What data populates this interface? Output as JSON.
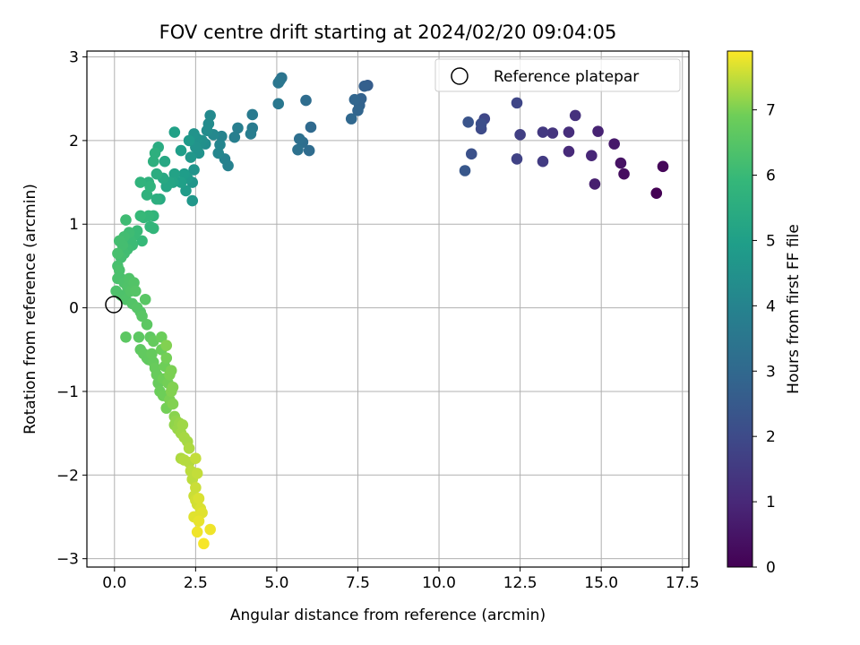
{
  "chart_data": {
    "type": "scatter",
    "title": "FOV centre drift starting at 2024/02/20 09:04:05",
    "xlabel": "Angular distance from reference (arcmin)",
    "ylabel": "Rotation from reference (arcmin)",
    "xlim": [
      -0.85,
      17.7
    ],
    "ylim": [
      -3.1,
      3.07
    ],
    "xticks": [
      0.0,
      2.5,
      5.0,
      7.5,
      10.0,
      12.5,
      15.0,
      17.5
    ],
    "xtick_labels": [
      "0.0",
      "2.5",
      "5.0",
      "7.5",
      "10.0",
      "12.5",
      "15.0",
      "17.5"
    ],
    "yticks": [
      -3,
      -2,
      -1,
      0,
      1,
      2,
      3
    ],
    "ytick_labels": [
      "−3",
      "−2",
      "−1",
      "0",
      "1",
      "2",
      "3"
    ],
    "grid": true,
    "legend": {
      "position": "top-right",
      "entries": [
        "Reference platepar"
      ]
    },
    "reference_point": {
      "x": 0,
      "y": 0,
      "label": "Reference platepar"
    },
    "colorbar": {
      "label": "Hours from first FF file",
      "colormap": "viridis",
      "range": [
        0,
        7.9
      ],
      "ticks": [
        0,
        1,
        2,
        3,
        4,
        5,
        6,
        7
      ],
      "tick_labels": [
        "0",
        "1",
        "2",
        "3",
        "4",
        "5",
        "6",
        "7"
      ]
    },
    "points": [
      [
        16.7,
        1.37,
        0.0
      ],
      [
        16.9,
        1.69,
        0.15
      ],
      [
        15.7,
        1.6,
        0.3
      ],
      [
        15.6,
        1.73,
        0.45
      ],
      [
        15.4,
        1.96,
        0.6
      ],
      [
        14.8,
        1.48,
        0.75
      ],
      [
        14.9,
        2.11,
        0.85
      ],
      [
        14.7,
        1.82,
        0.95
      ],
      [
        14.0,
        1.87,
        1.05
      ],
      [
        14.0,
        2.1,
        1.15
      ],
      [
        14.2,
        2.3,
        1.25
      ],
      [
        13.5,
        2.09,
        1.35
      ],
      [
        13.2,
        2.1,
        1.45
      ],
      [
        13.2,
        1.75,
        1.55
      ],
      [
        12.5,
        2.07,
        1.65
      ],
      [
        12.4,
        1.78,
        1.75
      ],
      [
        12.4,
        2.45,
        1.85
      ],
      [
        11.4,
        2.26,
        1.9
      ],
      [
        11.3,
        2.14,
        2.0
      ],
      [
        11.3,
        2.2,
        2.1
      ],
      [
        11.0,
        1.84,
        2.2
      ],
      [
        10.9,
        2.22,
        2.3
      ],
      [
        10.8,
        1.64,
        2.4
      ],
      [
        7.8,
        2.66,
        2.6
      ],
      [
        7.7,
        2.65,
        2.7
      ],
      [
        7.6,
        2.5,
        2.75
      ],
      [
        7.55,
        2.42,
        2.8
      ],
      [
        7.5,
        2.36,
        2.85
      ],
      [
        7.4,
        2.49,
        2.9
      ],
      [
        7.3,
        2.26,
        2.95
      ],
      [
        6.05,
        2.16,
        3.05
      ],
      [
        6.0,
        1.88,
        3.1
      ],
      [
        5.9,
        2.48,
        3.15
      ],
      [
        5.8,
        1.98,
        3.2
      ],
      [
        5.7,
        2.02,
        3.25
      ],
      [
        5.65,
        1.89,
        3.3
      ],
      [
        5.15,
        2.75,
        3.4
      ],
      [
        5.1,
        2.72,
        3.45
      ],
      [
        5.05,
        2.69,
        3.5
      ],
      [
        5.05,
        2.44,
        3.55
      ],
      [
        4.25,
        2.31,
        3.65
      ],
      [
        4.25,
        2.15,
        3.7
      ],
      [
        4.2,
        2.08,
        3.75
      ],
      [
        3.8,
        2.15,
        3.8
      ],
      [
        3.7,
        2.04,
        3.85
      ],
      [
        3.5,
        1.7,
        3.9
      ],
      [
        3.4,
        1.78,
        3.95
      ],
      [
        3.3,
        2.05,
        4.0
      ],
      [
        3.25,
        1.95,
        4.05
      ],
      [
        3.2,
        1.85,
        4.1
      ],
      [
        3.05,
        2.07,
        4.15
      ],
      [
        2.95,
        2.3,
        4.2
      ],
      [
        2.9,
        2.2,
        4.25
      ],
      [
        2.85,
        2.12,
        4.3
      ],
      [
        2.8,
        1.96,
        4.35
      ],
      [
        2.7,
        2.0,
        4.4
      ],
      [
        2.65,
        1.97,
        4.45
      ],
      [
        2.6,
        1.85,
        4.5
      ],
      [
        2.55,
        2.02,
        4.5
      ],
      [
        2.5,
        1.92,
        4.55
      ],
      [
        2.45,
        2.08,
        4.55
      ],
      [
        2.45,
        1.65,
        4.6
      ],
      [
        2.4,
        1.5,
        4.65
      ],
      [
        2.4,
        1.28,
        4.7
      ],
      [
        2.35,
        1.8,
        4.7
      ],
      [
        2.3,
        2.0,
        4.75
      ],
      [
        2.25,
        1.55,
        4.8
      ],
      [
        2.2,
        1.4,
        4.85
      ],
      [
        2.15,
        1.6,
        4.9
      ],
      [
        2.05,
        1.88,
        4.95
      ],
      [
        2.05,
        1.5,
        5.0
      ],
      [
        1.85,
        2.1,
        5.05
      ],
      [
        1.85,
        1.6,
        5.1
      ],
      [
        1.8,
        1.5,
        5.15
      ],
      [
        1.7,
        1.5,
        5.2
      ],
      [
        1.6,
        1.45,
        5.25
      ],
      [
        1.55,
        1.75,
        5.3
      ],
      [
        1.5,
        1.55,
        5.35
      ],
      [
        1.4,
        1.3,
        5.4
      ],
      [
        1.35,
        1.92,
        5.45
      ],
      [
        1.3,
        1.6,
        5.5
      ],
      [
        1.3,
        1.3,
        5.55
      ],
      [
        1.25,
        1.85,
        5.6
      ],
      [
        1.2,
        1.75,
        5.6
      ],
      [
        1.05,
        1.5,
        5.65
      ],
      [
        1.0,
        1.35,
        5.7
      ],
      [
        0.8,
        1.5,
        5.75
      ],
      [
        1.1,
        1.45,
        5.75
      ],
      [
        1.2,
        1.1,
        5.8
      ],
      [
        1.2,
        0.95,
        5.85
      ],
      [
        1.1,
        0.97,
        5.85
      ],
      [
        1.05,
        1.1,
        5.9
      ],
      [
        0.9,
        1.08,
        5.9
      ],
      [
        0.85,
        0.8,
        5.95
      ],
      [
        0.8,
        1.1,
        5.95
      ],
      [
        0.7,
        0.92,
        6.0
      ],
      [
        0.6,
        0.87,
        6.0
      ],
      [
        0.55,
        0.75,
        6.05
      ],
      [
        0.5,
        0.8,
        6.05
      ],
      [
        0.45,
        0.9,
        6.1
      ],
      [
        0.4,
        0.7,
        6.1
      ],
      [
        0.35,
        1.05,
        6.1
      ],
      [
        0.3,
        0.85,
        6.15
      ],
      [
        0.3,
        0.65,
        6.15
      ],
      [
        0.25,
        0.75,
        6.2
      ],
      [
        0.2,
        0.6,
        6.2
      ],
      [
        0.15,
        0.8,
        6.2
      ],
      [
        0.1,
        0.65,
        6.25
      ],
      [
        0.1,
        0.5,
        6.25
      ],
      [
        0.15,
        0.45,
        6.3
      ],
      [
        0.2,
        0.35,
        6.3
      ],
      [
        0.1,
        0.35,
        6.3
      ],
      [
        0.05,
        0.2,
        6.35
      ],
      [
        0.2,
        0.15,
        6.35
      ],
      [
        0.3,
        0.3,
        6.35
      ],
      [
        0.4,
        0.25,
        6.4
      ],
      [
        0.45,
        0.35,
        6.4
      ],
      [
        0.35,
        0.1,
        6.4
      ],
      [
        0.5,
        0.2,
        6.45
      ],
      [
        0.55,
        0.05,
        6.45
      ],
      [
        0.6,
        0.3,
        6.45
      ],
      [
        0.65,
        0.2,
        6.5
      ],
      [
        0.7,
        0.0,
        6.5
      ],
      [
        0.8,
        -0.05,
        6.5
      ],
      [
        0.85,
        -0.1,
        6.55
      ],
      [
        0.95,
        0.1,
        6.55
      ],
      [
        1.0,
        -0.2,
        6.6
      ],
      [
        0.35,
        -0.35,
        6.6
      ],
      [
        0.75,
        -0.35,
        6.6
      ],
      [
        1.1,
        -0.35,
        6.65
      ],
      [
        0.8,
        -0.5,
        6.65
      ],
      [
        0.9,
        -0.55,
        6.7
      ],
      [
        1.0,
        -0.6,
        6.7
      ],
      [
        1.05,
        -0.62,
        6.7
      ],
      [
        1.15,
        -0.55,
        6.75
      ],
      [
        1.2,
        -0.65,
        6.75
      ],
      [
        1.2,
        -0.4,
        6.75
      ],
      [
        1.25,
        -0.72,
        6.8
      ],
      [
        1.3,
        -0.8,
        6.8
      ],
      [
        1.35,
        -0.9,
        6.8
      ],
      [
        1.4,
        -1.0,
        6.85
      ],
      [
        1.45,
        -0.5,
        6.85
      ],
      [
        1.45,
        -0.35,
        6.85
      ],
      [
        1.5,
        -0.85,
        6.9
      ],
      [
        1.5,
        -1.05,
        6.9
      ],
      [
        1.55,
        -0.7,
        6.9
      ],
      [
        1.6,
        -0.6,
        6.95
      ],
      [
        1.6,
        -1.2,
        6.95
      ],
      [
        1.65,
        -0.9,
        6.95
      ],
      [
        1.7,
        -0.8,
        7.0
      ],
      [
        1.7,
        -1.1,
        7.0
      ],
      [
        1.75,
        -0.75,
        7.0
      ],
      [
        1.75,
        -1.0,
        7.05
      ],
      [
        1.8,
        -0.95,
        7.05
      ],
      [
        1.8,
        -1.15,
        7.05
      ],
      [
        1.6,
        -0.45,
        7.05
      ],
      [
        1.85,
        -1.3,
        7.1
      ],
      [
        1.85,
        -1.4,
        7.15
      ],
      [
        1.9,
        -1.35,
        7.15
      ],
      [
        1.95,
        -1.45,
        7.2
      ],
      [
        2.0,
        -1.38,
        7.2
      ],
      [
        2.05,
        -1.5,
        7.25
      ],
      [
        2.1,
        -1.4,
        7.25
      ],
      [
        2.15,
        -1.55,
        7.3
      ],
      [
        2.25,
        -1.6,
        7.3
      ],
      [
        2.3,
        -1.68,
        7.35
      ],
      [
        2.05,
        -1.8,
        7.35
      ],
      [
        2.15,
        -1.82,
        7.4
      ],
      [
        2.3,
        -1.85,
        7.4
      ],
      [
        2.35,
        -1.95,
        7.45
      ],
      [
        2.4,
        -2.05,
        7.45
      ],
      [
        2.5,
        -1.8,
        7.5
      ],
      [
        2.55,
        -1.98,
        7.5
      ],
      [
        2.5,
        -2.15,
        7.55
      ],
      [
        2.45,
        -2.25,
        7.55
      ],
      [
        2.5,
        -2.3,
        7.6
      ],
      [
        2.55,
        -2.35,
        7.6
      ],
      [
        2.6,
        -2.28,
        7.65
      ],
      [
        2.65,
        -2.4,
        7.65
      ],
      [
        2.7,
        -2.45,
        7.7
      ],
      [
        2.45,
        -2.5,
        7.7
      ],
      [
        2.6,
        -2.55,
        7.75
      ],
      [
        2.55,
        -2.68,
        7.8
      ],
      [
        2.95,
        -2.65,
        7.8
      ],
      [
        2.75,
        -2.82,
        7.85
      ]
    ]
  }
}
